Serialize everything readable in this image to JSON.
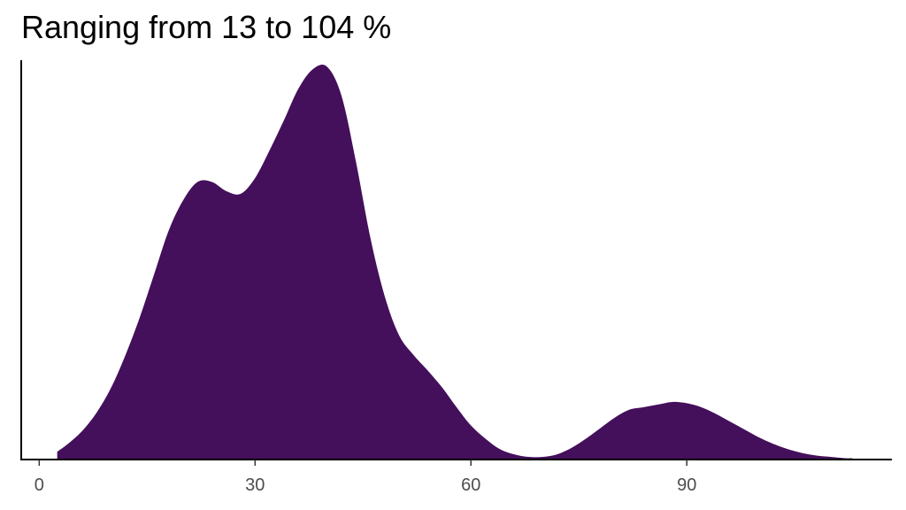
{
  "chart_data": {
    "type": "area",
    "title": "Ranging from 13 to 104 %",
    "xlabel": "",
    "ylabel": "",
    "xlim": [
      -2.5,
      118.5
    ],
    "ylim": [
      0,
      0.0305
    ],
    "x_ticks": [
      0,
      30,
      60,
      90
    ],
    "x_tick_labels": [
      "0",
      "30",
      "60",
      "90"
    ],
    "y_ticks_visible": false,
    "grid": false,
    "legend": "none",
    "fill_color": "#440F5B",
    "series": [
      {
        "x": [
          2.5,
          4,
          6,
          8,
          10,
          12,
          14,
          16,
          18,
          20,
          22,
          24,
          26,
          28,
          30,
          32,
          34,
          36,
          38,
          40,
          42,
          44,
          46,
          48,
          50,
          52,
          54,
          56,
          58,
          60,
          62,
          64,
          66,
          68,
          70,
          72,
          74,
          76,
          78,
          80,
          82,
          84,
          86,
          88,
          90,
          92,
          94,
          96,
          98,
          100,
          102,
          104,
          106,
          108,
          110,
          112,
          113
        ],
        "y": [
          0.0006,
          0.0012,
          0.0022,
          0.0036,
          0.0055,
          0.008,
          0.0109,
          0.0142,
          0.0175,
          0.0198,
          0.0212,
          0.0212,
          0.0205,
          0.0203,
          0.0215,
          0.0236,
          0.0259,
          0.0283,
          0.0298,
          0.03,
          0.0278,
          0.0228,
          0.017,
          0.0125,
          0.0095,
          0.008,
          0.0068,
          0.0055,
          0.004,
          0.0026,
          0.0016,
          0.0008,
          0.0004,
          0.0002,
          0.0002,
          0.0004,
          0.0009,
          0.0016,
          0.0024,
          0.0032,
          0.0038,
          0.004,
          0.0042,
          0.0044,
          0.0043,
          0.004,
          0.0035,
          0.0029,
          0.0023,
          0.0017,
          0.0012,
          0.0008,
          0.0005,
          0.0003,
          0.0002,
          0.0001,
          0.0001
        ]
      }
    ]
  }
}
